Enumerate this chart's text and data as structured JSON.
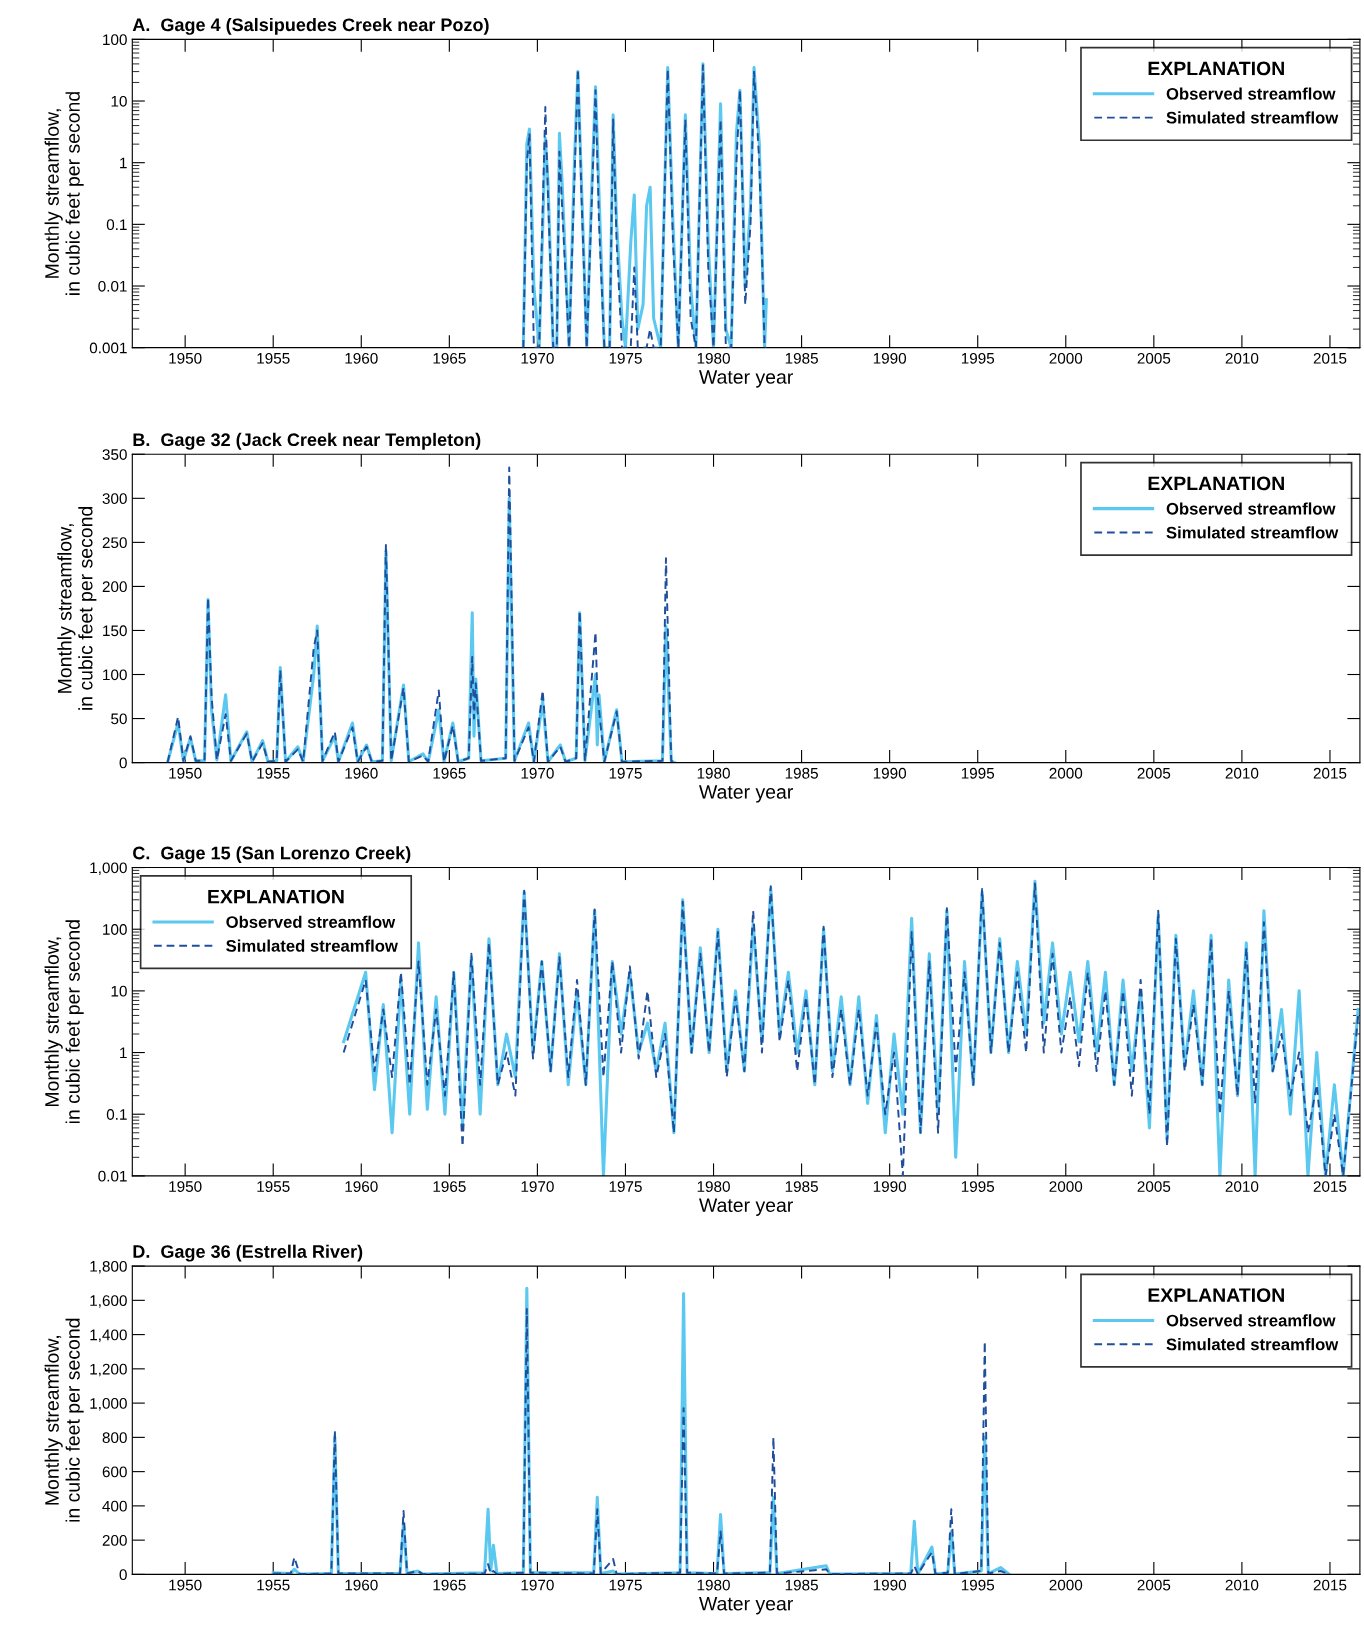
{
  "chart_data": [
    {
      "type": "line",
      "title": "A.  Gage 4 (Salsipuedes Creek near Pozo)",
      "xlabel": "Water year",
      "ylabel": "Monthly streamflow,\nin cubic feet per second",
      "legend_title": "EXPLANATION",
      "legend": "top right",
      "grid": false,
      "log": "y",
      "xlim": [
        1947,
        2016.7
      ],
      "xticks": [
        1950,
        1955,
        1960,
        1965,
        1970,
        1975,
        1980,
        1985,
        1990,
        1995,
        2000,
        2005,
        2010,
        2015
      ],
      "ylim": [
        0.001,
        100
      ],
      "yticks": [
        0.001,
        0.01,
        0.1,
        1,
        10,
        100
      ],
      "x": [
        1969.2,
        1969.4,
        1969.55,
        1969.8,
        1970.1,
        1970.45,
        1970.6,
        1970.9,
        1971.1,
        1971.25,
        1971.4,
        1971.8,
        1972.1,
        1972.3,
        1972.5,
        1972.8,
        1973.1,
        1973.3,
        1973.5,
        1973.8,
        1974.1,
        1974.3,
        1974.5,
        1974.8,
        1975.0,
        1975.3,
        1975.5,
        1975.7,
        1976.0,
        1976.2,
        1976.4,
        1976.6,
        1977.0,
        1977.4,
        1977.7,
        1978.0,
        1978.4,
        1978.7,
        1979.0,
        1979.4,
        1979.7,
        1980.0,
        1980.4,
        1980.7,
        1981.0,
        1981.3,
        1981.5,
        1981.8,
        1982.1,
        1982.3,
        1982.6,
        1982.9,
        1983.0
      ],
      "series": [
        {
          "name": "Observed streamflow",
          "color": "#5bc8f0",
          "line_style": "solid",
          "values": [
            0.001,
            2,
            3.5,
            0.01,
            0.001,
            2.5,
            0.5,
            0.001,
            0.001,
            3,
            0.5,
            0.001,
            1,
            30,
            0.5,
            0.001,
            0.5,
            17,
            0.3,
            0.001,
            0.001,
            6,
            0.1,
            0.003,
            0.001,
            0.05,
            0.3,
            0.002,
            0.005,
            0.2,
            0.4,
            0.003,
            0.001,
            35,
            0.1,
            0.001,
            6,
            0.01,
            0.001,
            40,
            0.05,
            0.001,
            9,
            0.002,
            0.001,
            3,
            15,
            0.01,
            0.2,
            35,
            2,
            0.001,
            0.006
          ]
        },
        {
          "name": "Simulated streamflow",
          "color": "#1f4e9c",
          "line_style": "dashed",
          "values": [
            0.001,
            1,
            3,
            0.001,
            0.001,
            8,
            0.3,
            0.001,
            0.001,
            1.5,
            0.2,
            0.001,
            0.5,
            33,
            0.3,
            0.001,
            0.3,
            15,
            0.1,
            0.001,
            0.001,
            5,
            0.05,
            0.001,
            0.001,
            0.001,
            0.02,
            0.001,
            0.001,
            0.001,
            0.002,
            0.001,
            0.001,
            33,
            0.05,
            0.001,
            5,
            0.003,
            0.001,
            38,
            0.02,
            0.001,
            5,
            0.001,
            0.001,
            1,
            15,
            0.005,
            0.1,
            30,
            1,
            0.001,
            0.001
          ]
        }
      ]
    },
    {
      "type": "line",
      "title": "B.  Gage 32 (Jack Creek near Templeton)",
      "xlabel": "Water year",
      "ylabel": "Monthly streamflow,\nin cubic feet per second",
      "legend_title": "EXPLANATION",
      "legend": "top right",
      "grid": false,
      "xlim": [
        1947,
        2016.7
      ],
      "xticks": [
        1950,
        1955,
        1960,
        1965,
        1970,
        1975,
        1980,
        1985,
        1990,
        1995,
        2000,
        2005,
        2010,
        2015
      ],
      "ylim": [
        0,
        350
      ],
      "yticks": [
        0,
        50,
        100,
        150,
        200,
        250,
        300,
        350
      ],
      "x": [
        1949.0,
        1949.6,
        1949.9,
        1950.3,
        1950.6,
        1951.1,
        1951.3,
        1951.5,
        1951.8,
        1952.3,
        1952.6,
        1953.5,
        1953.8,
        1954.4,
        1954.7,
        1955.2,
        1955.4,
        1955.7,
        1956.4,
        1956.7,
        1957.3,
        1957.5,
        1957.8,
        1958.5,
        1958.7,
        1959.5,
        1959.8,
        1960.3,
        1960.6,
        1961.2,
        1961.4,
        1961.7,
        1962.4,
        1962.7,
        1963.5,
        1963.8,
        1964.4,
        1964.7,
        1965.2,
        1965.5,
        1966.1,
        1966.3,
        1966.4,
        1966.5,
        1966.8,
        1968.2,
        1968.4,
        1968.7,
        1969.5,
        1969.8,
        1970.3,
        1970.6,
        1971.3,
        1971.6,
        1972.2,
        1972.4,
        1972.7,
        1973.3,
        1973.4,
        1973.5,
        1973.8,
        1974.5,
        1974.8,
        1977.1,
        1977.3,
        1977.6,
        1977.8
      ],
      "series": [
        {
          "name": "Observed streamflow",
          "color": "#5bc8f0",
          "line_style": "solid",
          "values": [
            0,
            45,
            2,
            28,
            2,
            2,
            185,
            60,
            3,
            77,
            2,
            35,
            1,
            25,
            1,
            2,
            108,
            1,
            18,
            1,
            100,
            155,
            2,
            30,
            1,
            45,
            1,
            20,
            1,
            2,
            240,
            2,
            88,
            1,
            10,
            1,
            60,
            1,
            45,
            1,
            5,
            170,
            30,
            95,
            2,
            5,
            300,
            2,
            45,
            1,
            70,
            1,
            20,
            1,
            5,
            170,
            2,
            100,
            20,
            77,
            1,
            60,
            1,
            2,
            155,
            2,
            0
          ]
        },
        {
          "name": "Simulated streamflow",
          "color": "#1f4e9c",
          "line_style": "dashed",
          "values": [
            0,
            52,
            2,
            30,
            2,
            2,
            187,
            75,
            3,
            55,
            2,
            33,
            1,
            22,
            1,
            2,
            105,
            1,
            15,
            1,
            130,
            150,
            2,
            35,
            1,
            40,
            1,
            18,
            1,
            2,
            248,
            2,
            85,
            1,
            8,
            1,
            82,
            1,
            42,
            1,
            5,
            120,
            50,
            90,
            2,
            5,
            335,
            2,
            40,
            1,
            82,
            1,
            18,
            1,
            5,
            172,
            2,
            148,
            80,
            60,
            1,
            58,
            1,
            2,
            232,
            2,
            0
          ]
        }
      ]
    },
    {
      "type": "line",
      "title": "C.  Gage 15 (San Lorenzo Creek)",
      "xlabel": "Water year",
      "ylabel": "Monthly streamflow,\nin cubic feet per second",
      "legend_title": "EXPLANATION",
      "legend": "top left",
      "grid": false,
      "log": "y",
      "xlim": [
        1947,
        2016.7
      ],
      "xticks": [
        1950,
        1955,
        1960,
        1965,
        1970,
        1975,
        1980,
        1985,
        1990,
        1995,
        2000,
        2005,
        2010,
        2015
      ],
      "ylim": [
        0.01,
        1000
      ],
      "yticks": [
        0.01,
        0.1,
        1,
        10,
        100,
        {
          "value": 1000,
          "label": "1,000"
        }
      ],
      "x": [
        1959.0,
        1960.25,
        1960.75,
        1961.25,
        1961.75,
        1962.25,
        1962.75,
        1963.25,
        1963.75,
        1964.25,
        1964.75,
        1965.25,
        1965.75,
        1966.25,
        1966.75,
        1967.25,
        1967.75,
        1968.25,
        1968.75,
        1969.25,
        1969.75,
        1970.25,
        1970.75,
        1971.25,
        1971.75,
        1972.25,
        1972.75,
        1973.25,
        1973.75,
        1974.25,
        1974.75,
        1975.25,
        1975.75,
        1976.25,
        1976.75,
        1977.25,
        1977.75,
        1978.25,
        1978.75,
        1979.25,
        1979.75,
        1980.25,
        1980.75,
        1981.25,
        1981.75,
        1982.25,
        1982.75,
        1983.25,
        1983.75,
        1984.25,
        1984.75,
        1985.25,
        1985.75,
        1986.25,
        1986.75,
        1987.25,
        1987.75,
        1988.25,
        1988.75,
        1989.25,
        1989.75,
        1990.25,
        1990.75,
        1991.25,
        1991.75,
        1992.25,
        1992.75,
        1993.25,
        1993.75,
        1994.25,
        1994.75,
        1995.25,
        1995.75,
        1996.25,
        1996.75,
        1997.25,
        1997.75,
        1998.25,
        1998.75,
        1999.25,
        1999.75,
        2000.25,
        2000.75,
        2001.25,
        2001.75,
        2002.25,
        2002.75,
        2003.25,
        2003.75,
        2004.25,
        2004.75,
        2005.25,
        2005.75,
        2006.25,
        2006.75,
        2007.25,
        2007.75,
        2008.25,
        2008.75,
        2009.25,
        2009.75,
        2010.25,
        2010.75,
        2011.25,
        2011.75,
        2012.25,
        2012.75,
        2013.25,
        2013.75,
        2014.25,
        2014.75,
        2015.25,
        2015.75,
        2016.6
      ],
      "series": [
        {
          "name": "Observed streamflow",
          "color": "#5bc8f0",
          "line_style": "solid",
          "values": [
            1.5,
            20,
            0.25,
            6,
            0.05,
            15,
            0.1,
            60,
            0.12,
            8,
            0.1,
            20,
            0.07,
            35,
            0.1,
            70,
            0.3,
            2,
            0.4,
            400,
            1,
            30,
            0.5,
            40,
            0.3,
            10,
            0.3,
            200,
            0.01,
            30,
            2,
            20,
            1,
            3,
            0.5,
            3,
            0.05,
            300,
            1,
            50,
            1,
            100,
            0.5,
            10,
            0.5,
            120,
            1.5,
            450,
            2,
            20,
            1,
            10,
            0.3,
            100,
            0.5,
            8,
            0.3,
            8,
            0.15,
            4,
            0.05,
            2,
            0.1,
            150,
            0.05,
            40,
            0.1,
            200,
            0.02,
            30,
            0.3,
            400,
            1,
            70,
            1,
            30,
            2,
            600,
            3,
            60,
            2,
            20,
            1.5,
            30,
            1,
            20,
            0.3,
            15,
            0.5,
            10,
            0.06,
            170,
            0.04,
            80,
            0.6,
            10,
            0.3,
            80,
            0.01,
            15,
            0.2,
            60,
            0.01,
            200,
            0.5,
            5,
            0.1,
            10,
            0.01,
            1,
            0.01,
            0.3,
            0.01,
            5
          ]
        },
        {
          "name": "Simulated streamflow",
          "color": "#1f4e9c",
          "line_style": "dashed",
          "values": [
            1.0,
            15,
            0.5,
            5,
            0.4,
            20,
            0.3,
            30,
            0.3,
            5,
            0.2,
            20,
            0.03,
            40,
            0.3,
            60,
            0.3,
            1,
            0.2,
            420,
            0.8,
            30,
            0.5,
            35,
            0.4,
            15,
            0.3,
            210,
            0.4,
            30,
            1,
            25,
            0.8,
            10,
            0.4,
            2,
            0.05,
            280,
            1,
            40,
            1,
            90,
            0.4,
            8,
            0.5,
            200,
            1,
            500,
            1.5,
            15,
            0.5,
            8,
            0.3,
            110,
            0.4,
            5,
            0.3,
            5,
            0.2,
            3,
            0.1,
            1,
            0.01,
            90,
            0.05,
            30,
            0.05,
            220,
            0.5,
            20,
            0.3,
            450,
            1,
            60,
            1,
            20,
            1,
            550,
            1,
            40,
            1,
            8,
            0.6,
            20,
            0.5,
            10,
            0.3,
            10,
            0.2,
            15,
            0.1,
            200,
            0.03,
            70,
            0.5,
            6,
            0.3,
            70,
            0.1,
            10,
            0.2,
            50,
            0.15,
            130,
            0.5,
            2,
            0.2,
            1,
            0.05,
            0.3,
            0.01,
            0.1,
            0.01,
            4
          ]
        }
      ]
    },
    {
      "type": "line",
      "title": "D.  Gage 36 (Estrella River)",
      "xlabel": "Water year",
      "ylabel": "Monthly streamflow,\nin cubic feet per second",
      "legend_title": "EXPLANATION",
      "legend": "top right",
      "grid": false,
      "xlim": [
        1947,
        2016.7
      ],
      "xticks": [
        1950,
        1955,
        1960,
        1965,
        1970,
        1975,
        1980,
        1985,
        1990,
        1995,
        2000,
        2005,
        2010,
        2015
      ],
      "ylim": [
        0,
        1800
      ],
      "yticks": [
        0,
        200,
        400,
        600,
        800,
        {
          "value": 1000,
          "label": "1,000"
        },
        {
          "value": 1200,
          "label": "1,200"
        },
        {
          "value": 1400,
          "label": "1,400"
        },
        {
          "value": 1600,
          "label": "1,600"
        },
        {
          "value": 1800,
          "label": "1,800"
        }
      ],
      "x": [
        1955.0,
        1956.0,
        1956.2,
        1956.5,
        1958.3,
        1958.5,
        1958.7,
        1962.2,
        1962.4,
        1962.6,
        1963.2,
        1963.5,
        1967.0,
        1967.2,
        1967.35,
        1967.5,
        1967.7,
        1969.2,
        1969.4,
        1969.6,
        1973.2,
        1973.4,
        1973.6,
        1974.3,
        1974.5,
        1978.1,
        1978.3,
        1978.5,
        1980.2,
        1980.4,
        1980.6,
        1983.2,
        1983.4,
        1983.6,
        1986.4,
        1986.6,
        1991.2,
        1991.4,
        1991.6,
        1992.4,
        1992.6,
        1993.3,
        1993.5,
        1993.7,
        1995.2,
        1995.4,
        1995.6,
        1996.3,
        1996.8
      ],
      "series": [
        {
          "name": "Observed streamflow",
          "color": "#5bc8f0",
          "line_style": "solid",
          "values": [
            10,
            5,
            30,
            2,
            5,
            800,
            5,
            5,
            300,
            5,
            20,
            2,
            10,
            380,
            20,
            170,
            5,
            10,
            1670,
            10,
            10,
            450,
            5,
            20,
            2,
            10,
            1640,
            10,
            5,
            350,
            5,
            10,
            450,
            5,
            50,
            2,
            5,
            310,
            2,
            160,
            2,
            10,
            250,
            2,
            20,
            800,
            5,
            40,
            0
          ]
        },
        {
          "name": "Simulated streamflow",
          "color": "#1f4e9c",
          "line_style": "dashed",
          "values": [
            5,
            5,
            100,
            2,
            5,
            840,
            5,
            5,
            370,
            5,
            20,
            2,
            5,
            60,
            5,
            20,
            2,
            10,
            1550,
            10,
            5,
            380,
            5,
            90,
            2,
            10,
            970,
            10,
            5,
            250,
            5,
            10,
            800,
            5,
            30,
            2,
            5,
            50,
            2,
            130,
            2,
            10,
            380,
            2,
            20,
            1360,
            5,
            20,
            0
          ]
        }
      ]
    }
  ]
}
